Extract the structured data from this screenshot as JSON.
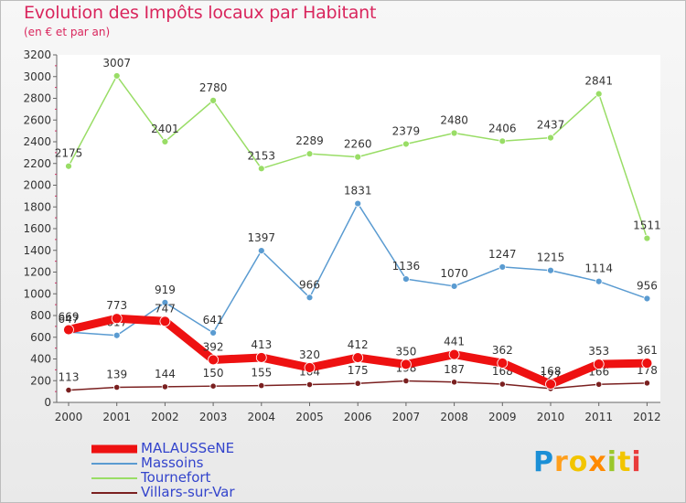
{
  "title": "Evolution des Impôts locaux par Habitant",
  "subtitle": "(en € et par an)",
  "brand": {
    "letters": [
      "P",
      "r",
      "o",
      "x",
      "i",
      "t",
      "i"
    ],
    "colors": [
      "#1b8fd6",
      "#ff9f1c",
      "#f2c500",
      "#ff8a00",
      "#9ac72b",
      "#f2c500",
      "#e93b3b"
    ]
  },
  "chart_data": {
    "type": "line",
    "x": [
      "2000",
      "2001",
      "2002",
      "2003",
      "2004",
      "2005",
      "2006",
      "2007",
      "2008",
      "2009",
      "2010",
      "2011",
      "2012"
    ],
    "ylim": [
      0,
      3200
    ],
    "yticks": [
      "0",
      "200",
      "400",
      "600",
      "800",
      "1000",
      "1200",
      "1400",
      "1600",
      "1800",
      "2000",
      "2200",
      "2400",
      "2600",
      "2800",
      "3000",
      "3200"
    ],
    "grid": false,
    "legend_position": "bottom-left",
    "series": [
      {
        "name": "Villars-sur-Var",
        "color": "#7a2020",
        "values": [
          113,
          139,
          144,
          150,
          155,
          164,
          175,
          198,
          187,
          168,
          127,
          166,
          178
        ],
        "labels": [
          "113",
          "139",
          "144",
          "150",
          "155",
          "164",
          "175",
          "198",
          "187",
          "168",
          "127",
          "166",
          "178"
        ]
      },
      {
        "name": "Tournefort",
        "color": "#99dd66",
        "values": [
          2175,
          3007,
          2401,
          2780,
          2153,
          2289,
          2260,
          2379,
          2480,
          2406,
          2437,
          2841,
          1511
        ],
        "labels": [
          "2175",
          "3007",
          "2401",
          "2780",
          "2153",
          "2289",
          "2260",
          "2379",
          "2480",
          "2406",
          "2437",
          "2841",
          "1511"
        ]
      },
      {
        "name": "Massoins",
        "color": "#5a9bd1",
        "values": [
          647,
          617,
          919,
          641,
          1397,
          966,
          1831,
          1136,
          1070,
          1247,
          1215,
          1114,
          956
        ],
        "labels": [
          "647",
          "617",
          "919",
          "641",
          "1397",
          "966",
          "1831",
          "1136",
          "1070",
          "1247",
          "1215",
          "1114",
          "956"
        ]
      },
      {
        "name": "MALAUSSeNE",
        "color": "#ee1111",
        "values": [
          669,
          773,
          747,
          392,
          413,
          320,
          412,
          350,
          441,
          362,
          168,
          353,
          361
        ],
        "labels": [
          "669",
          "773",
          "747",
          "392",
          "413",
          "320",
          "412",
          "350",
          "441",
          "362",
          "168",
          "353",
          "361"
        ]
      }
    ],
    "legend": [
      "MALAUSSeNE",
      "Massoins",
      "Tournefort",
      "Villars-sur-Var"
    ]
  }
}
